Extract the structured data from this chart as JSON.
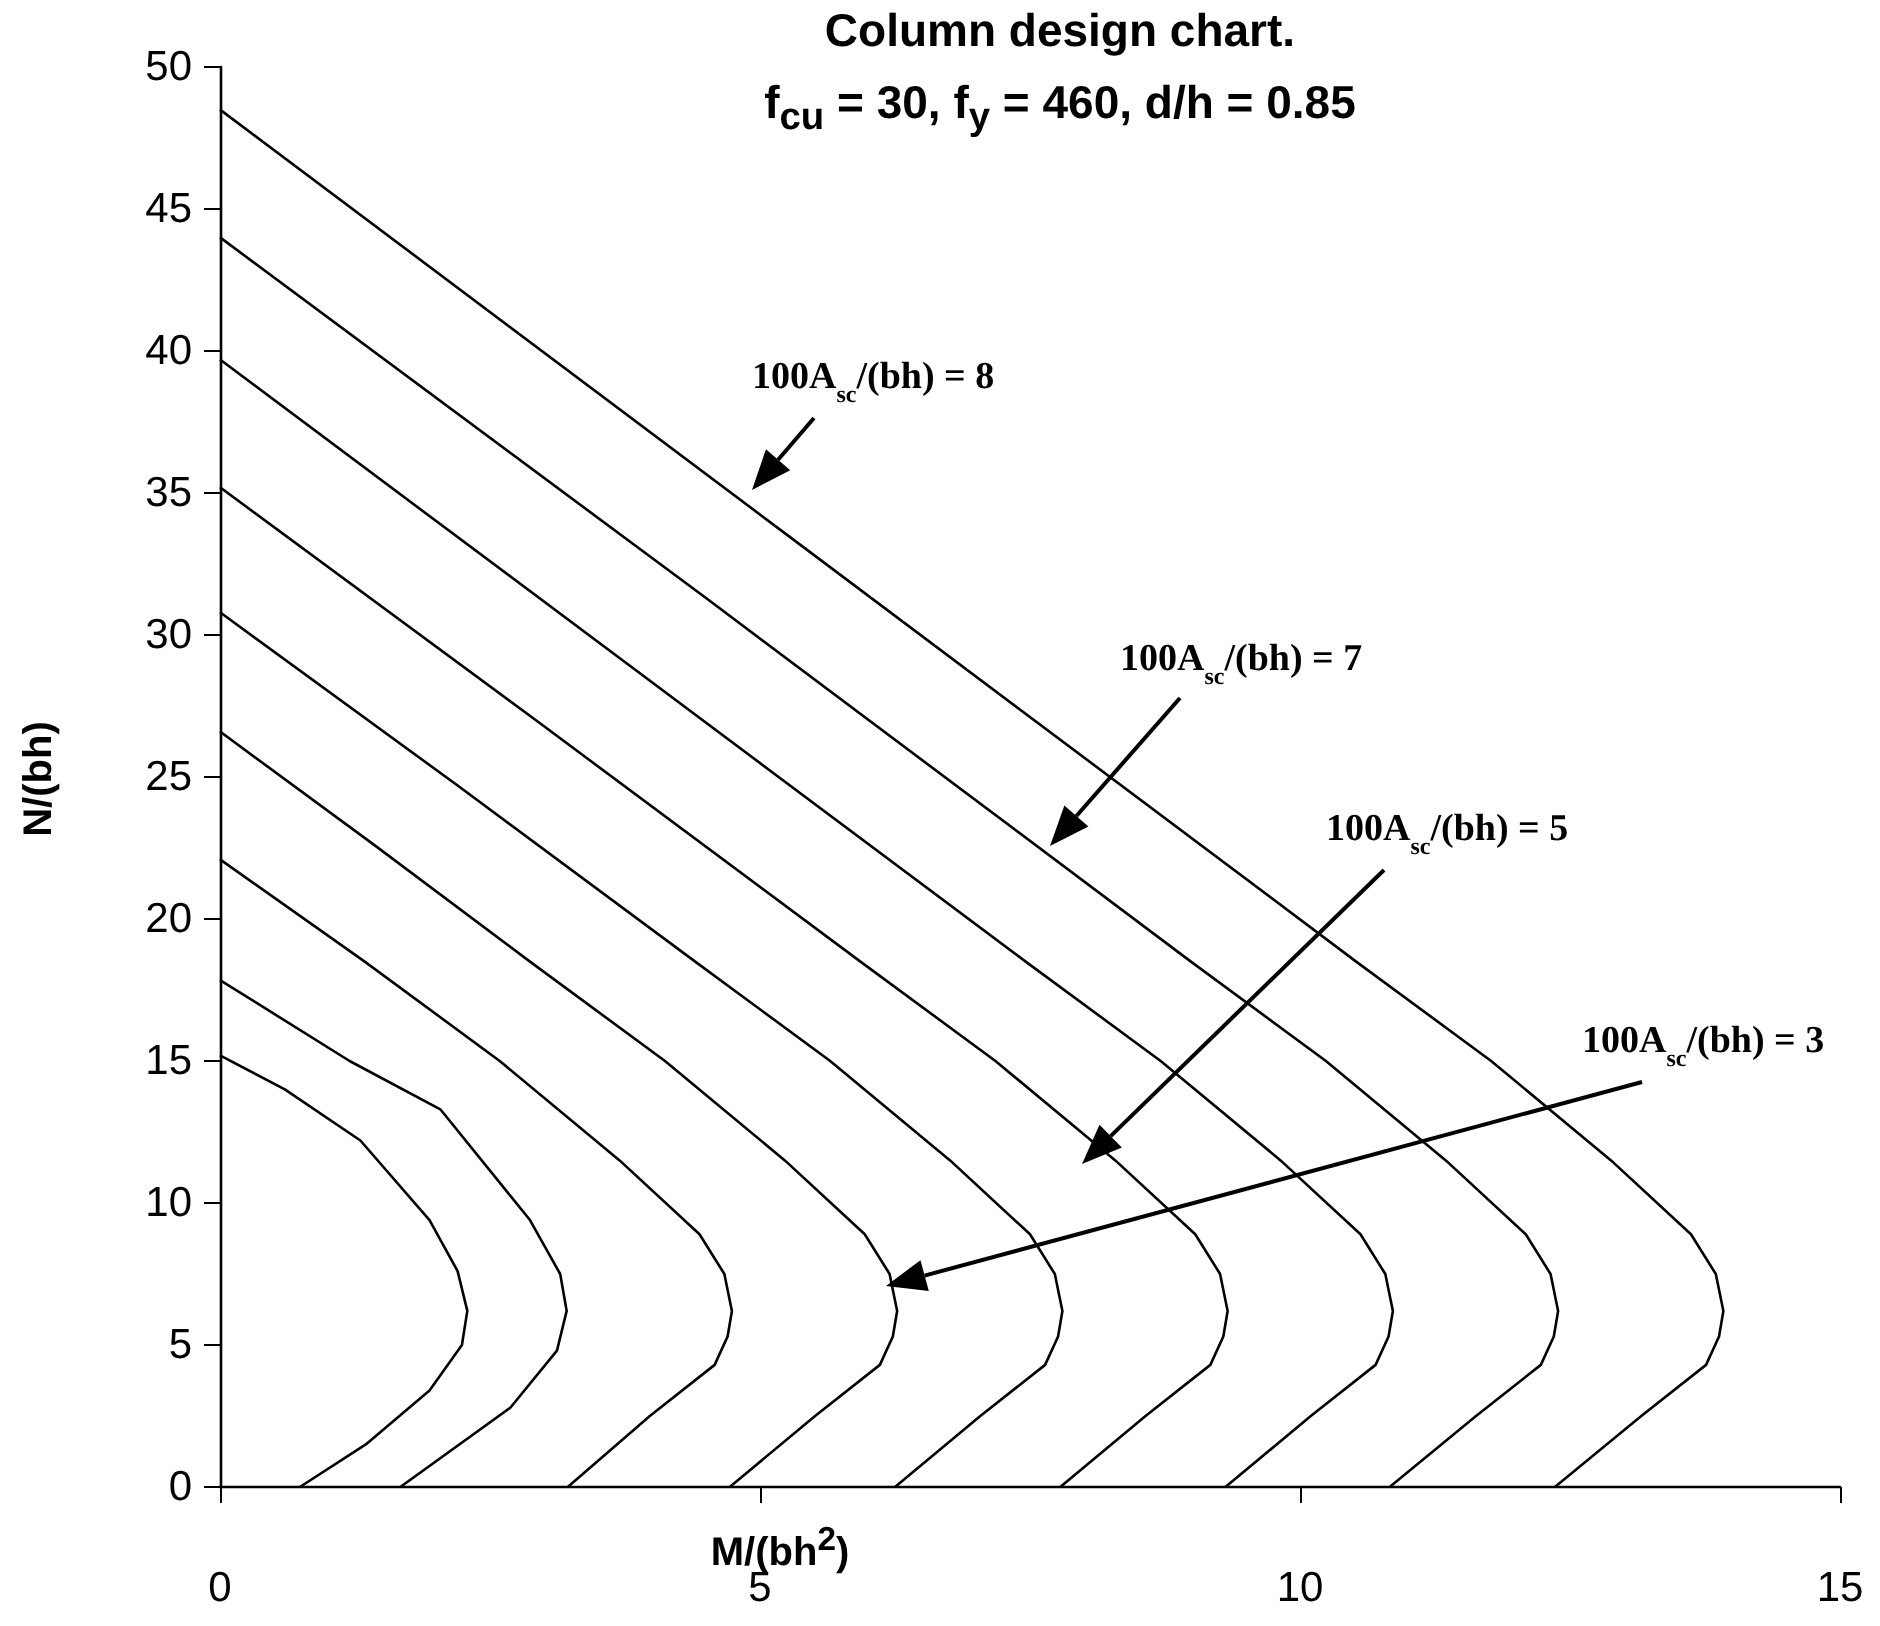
{
  "chart_data": {
    "type": "line",
    "title": "Column design chart.",
    "subtitle": "f$_{cu}$ = 30, f$_{y}$ = 460, d/h = 0.85",
    "xlabel": "M/(bh$^{2}$)",
    "ylabel": "N/(bh)",
    "xlim": [
      0,
      15
    ],
    "xticks": [
      0,
      5,
      10,
      15
    ],
    "ylim": [
      0,
      50
    ],
    "yticks": [
      0,
      5,
      10,
      15,
      20,
      25,
      30,
      35,
      40,
      45,
      50
    ],
    "grid": false,
    "marker": "none",
    "line_style": "solid",
    "series": [
      {
        "color": "#000000",
        "x": [
          0,
          0.6,
          1.3,
          1.94,
          2.2,
          2.29,
          2.24,
          1.94,
          1.35,
          0.74
        ],
        "values": [
          15.2,
          14.0,
          12.2,
          9.4,
          7.6,
          6.2,
          5.0,
          3.4,
          1.5,
          0
        ]
      },
      {
        "color": "#000000",
        "x": [
          0,
          1.2,
          2.04,
          2.87,
          3.15,
          3.21,
          3.12,
          2.69,
          1.67
        ],
        "values": [
          17.85,
          15.0,
          13.3,
          9.4,
          7.5,
          6.2,
          4.8,
          2.8,
          0
        ]
      },
      {
        "color": "#000000",
        "x": [
          0,
          1.34,
          2.59,
          3.7,
          4.44,
          4.67,
          4.74,
          4.7,
          4.58,
          3.98,
          3.22
        ],
        "values": [
          22.1,
          18.5,
          15,
          11.5,
          8.9,
          7.5,
          6.2,
          5.3,
          4.3,
          2.5,
          0
        ]
      },
      {
        "color": "#000000",
        "x": [
          0,
          1.43,
          2.87,
          4.12,
          5.23,
          5.97,
          6.2,
          6.27,
          6.23,
          6.11,
          5.51,
          4.72
        ],
        "values": [
          26.6,
          22.6,
          18.5,
          15,
          11.5,
          8.9,
          7.5,
          6.2,
          5.3,
          4.3,
          2.5,
          0
        ]
      },
      {
        "color": "#000000",
        "x": [
          0,
          2.2,
          4.4,
          5.65,
          6.76,
          7.5,
          7.73,
          7.8,
          7.76,
          7.64,
          7.04,
          6.25
        ],
        "values": [
          30.8,
          24.7,
          18.5,
          15,
          11.5,
          8.9,
          7.5,
          6.2,
          5.3,
          4.3,
          2.5,
          0
        ]
      },
      {
        "color": "#000000",
        "x": [
          0,
          2.96,
          5.93,
          7.18,
          8.29,
          9.03,
          9.26,
          9.33,
          9.29,
          9.17,
          8.57,
          7.78
        ],
        "values": [
          35.2,
          26.9,
          18.5,
          15,
          11.5,
          8.9,
          7.5,
          6.2,
          5.3,
          4.3,
          2.5,
          0
        ]
      },
      {
        "color": "#000000",
        "x": [
          0,
          3.73,
          7.46,
          8.71,
          9.82,
          10.56,
          10.79,
          10.86,
          10.82,
          10.7,
          10.1,
          9.31
        ],
        "values": [
          39.7,
          29.1,
          18.5,
          15,
          11.5,
          8.9,
          7.5,
          6.2,
          5.3,
          4.3,
          2.5,
          0
        ]
      },
      {
        "color": "#000000",
        "x": [
          0,
          4.5,
          8.99,
          10.24,
          11.35,
          12.09,
          12.32,
          12.39,
          12.35,
          12.23,
          11.63,
          10.83
        ],
        "values": [
          44.0,
          31.3,
          18.5,
          15,
          11.5,
          8.9,
          7.5,
          6.2,
          5.3,
          4.3,
          2.5,
          0
        ]
      },
      {
        "color": "#000000",
        "x": [
          0,
          5.26,
          10.52,
          11.77,
          12.88,
          13.62,
          13.85,
          13.92,
          13.88,
          13.76,
          13.16,
          12.36
        ],
        "values": [
          48.5,
          33.5,
          18.5,
          15,
          11.5,
          8.9,
          7.5,
          6.2,
          5.3,
          4.3,
          2.5,
          0
        ]
      }
    ],
    "annotations": [
      "100A$_{sc}$/(bh) = 8",
      "100A$_{sc}$/(bh) = 7",
      "100A$_{sc}$/(bh) = 5",
      "100A$_{sc}$/(bh) = 3"
    ]
  }
}
